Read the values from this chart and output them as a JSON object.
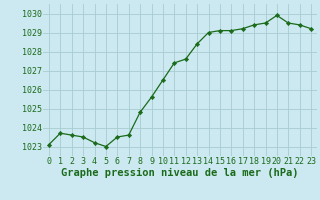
{
  "x": [
    0,
    1,
    2,
    3,
    4,
    5,
    6,
    7,
    8,
    9,
    10,
    11,
    12,
    13,
    14,
    15,
    16,
    17,
    18,
    19,
    20,
    21,
    22,
    23
  ],
  "y": [
    1023.1,
    1023.7,
    1023.6,
    1023.5,
    1023.2,
    1023.0,
    1023.5,
    1023.6,
    1024.8,
    1025.6,
    1026.5,
    1027.4,
    1027.6,
    1028.4,
    1029.0,
    1029.1,
    1029.1,
    1029.2,
    1029.4,
    1029.5,
    1029.9,
    1029.5,
    1029.4,
    1029.2
  ],
  "line_color": "#1a6b1a",
  "marker_color": "#1a6b1a",
  "bg_color": "#cce8f0",
  "grid_color": "#a8ccd0",
  "xlabel": "Graphe pression niveau de la mer (hPa)",
  "ylim": [
    1022.5,
    1030.5
  ],
  "yticks": [
    1023,
    1024,
    1025,
    1026,
    1027,
    1028,
    1029,
    1030
  ],
  "xticks": [
    0,
    1,
    2,
    3,
    4,
    5,
    6,
    7,
    8,
    9,
    10,
    11,
    12,
    13,
    14,
    15,
    16,
    17,
    18,
    19,
    20,
    21,
    22,
    23
  ],
  "xlabel_fontsize": 7.5,
  "tick_fontsize": 6,
  "xlabel_fontweight": "bold"
}
